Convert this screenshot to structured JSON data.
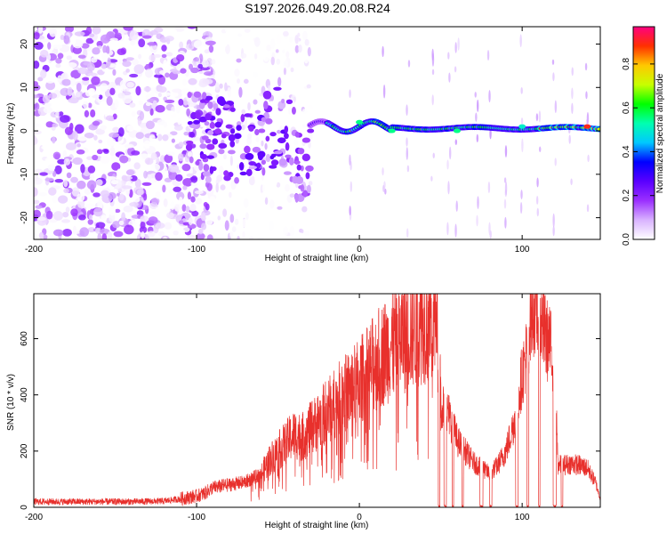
{
  "title": "S197.2026.049.20.08.R24",
  "chart_data": [
    {
      "type": "heatmap",
      "name": "spectrogram",
      "xlabel": "Height of straight line (km)",
      "ylabel": "Frequency (Hz)",
      "xlim": [
        -200,
        148
      ],
      "ylim": [
        -25,
        24
      ],
      "xticks": [
        -200,
        -100,
        0,
        100
      ],
      "yticks": [
        -20,
        -10,
        0,
        10,
        20
      ],
      "colorbar": {
        "label": "Normalized spectral amplitude",
        "range": [
          0.0,
          0.97
        ],
        "ticks": [
          0.0,
          0.2,
          0.4,
          0.6,
          0.8
        ],
        "colors": [
          "#ffffff",
          "#d9b3ff",
          "#9b30ff",
          "#5a00ff",
          "#0000ff",
          "#00c8ff",
          "#00ffb0",
          "#00ff00",
          "#c8ff00",
          "#ffc800",
          "#ff3000",
          "#ff0080"
        ]
      },
      "signal_description_points": [
        {
          "x": -100,
          "y": 2,
          "amp": 0.25
        },
        {
          "x": -80,
          "y": 1,
          "amp": 0.2
        },
        {
          "x": -60,
          "y": 0,
          "amp": 0.15
        },
        {
          "x": -30,
          "y": 0,
          "amp": 0.2
        },
        {
          "x": 0,
          "y": 2,
          "amp": 0.55
        },
        {
          "x": 20,
          "y": 0,
          "amp": 0.55
        },
        {
          "x": 60,
          "y": 0,
          "amp": 0.55
        },
        {
          "x": 100,
          "y": 1,
          "amp": 0.5
        },
        {
          "x": 140,
          "y": 1,
          "amp": 0.9
        }
      ]
    },
    {
      "type": "line",
      "name": "snr",
      "xlabel": "Height of straight line (km)",
      "ylabel": "SNR (10 * v/v)",
      "xlim": [
        -200,
        148
      ],
      "ylim": [
        0,
        760
      ],
      "xticks": [
        -200,
        -100,
        0,
        100
      ],
      "yticks": [
        0,
        200,
        400,
        600
      ],
      "series": [
        {
          "name": "SNR",
          "color": "#e8302c",
          "x": [
            -200,
            -180,
            -160,
            -140,
            -120,
            -110,
            -100,
            -95,
            -90,
            -80,
            -70,
            -60,
            -55,
            -50,
            -45,
            -40,
            -35,
            -30,
            -25,
            -20,
            -15,
            -10,
            -5,
            0,
            5,
            10,
            15,
            20,
            25,
            30,
            35,
            40,
            45,
            48,
            50,
            52,
            55,
            58,
            60,
            62,
            65,
            70,
            75,
            80,
            85,
            90,
            95,
            100,
            103,
            105,
            108,
            110,
            112,
            115,
            118,
            120,
            122,
            125,
            130,
            135,
            140,
            145,
            148
          ],
          "y": [
            20,
            20,
            20,
            20,
            22,
            30,
            40,
            50,
            70,
            80,
            90,
            120,
            170,
            200,
            230,
            260,
            250,
            280,
            310,
            340,
            370,
            400,
            420,
            450,
            480,
            520,
            550,
            580,
            600,
            630,
            650,
            670,
            660,
            650,
            380,
            350,
            330,
            280,
            240,
            220,
            200,
            160,
            140,
            120,
            150,
            200,
            300,
            470,
            560,
            680,
            720,
            690,
            650,
            600,
            560,
            520,
            150,
            150,
            155,
            150,
            140,
            90,
            30
          ]
        }
      ]
    }
  ]
}
